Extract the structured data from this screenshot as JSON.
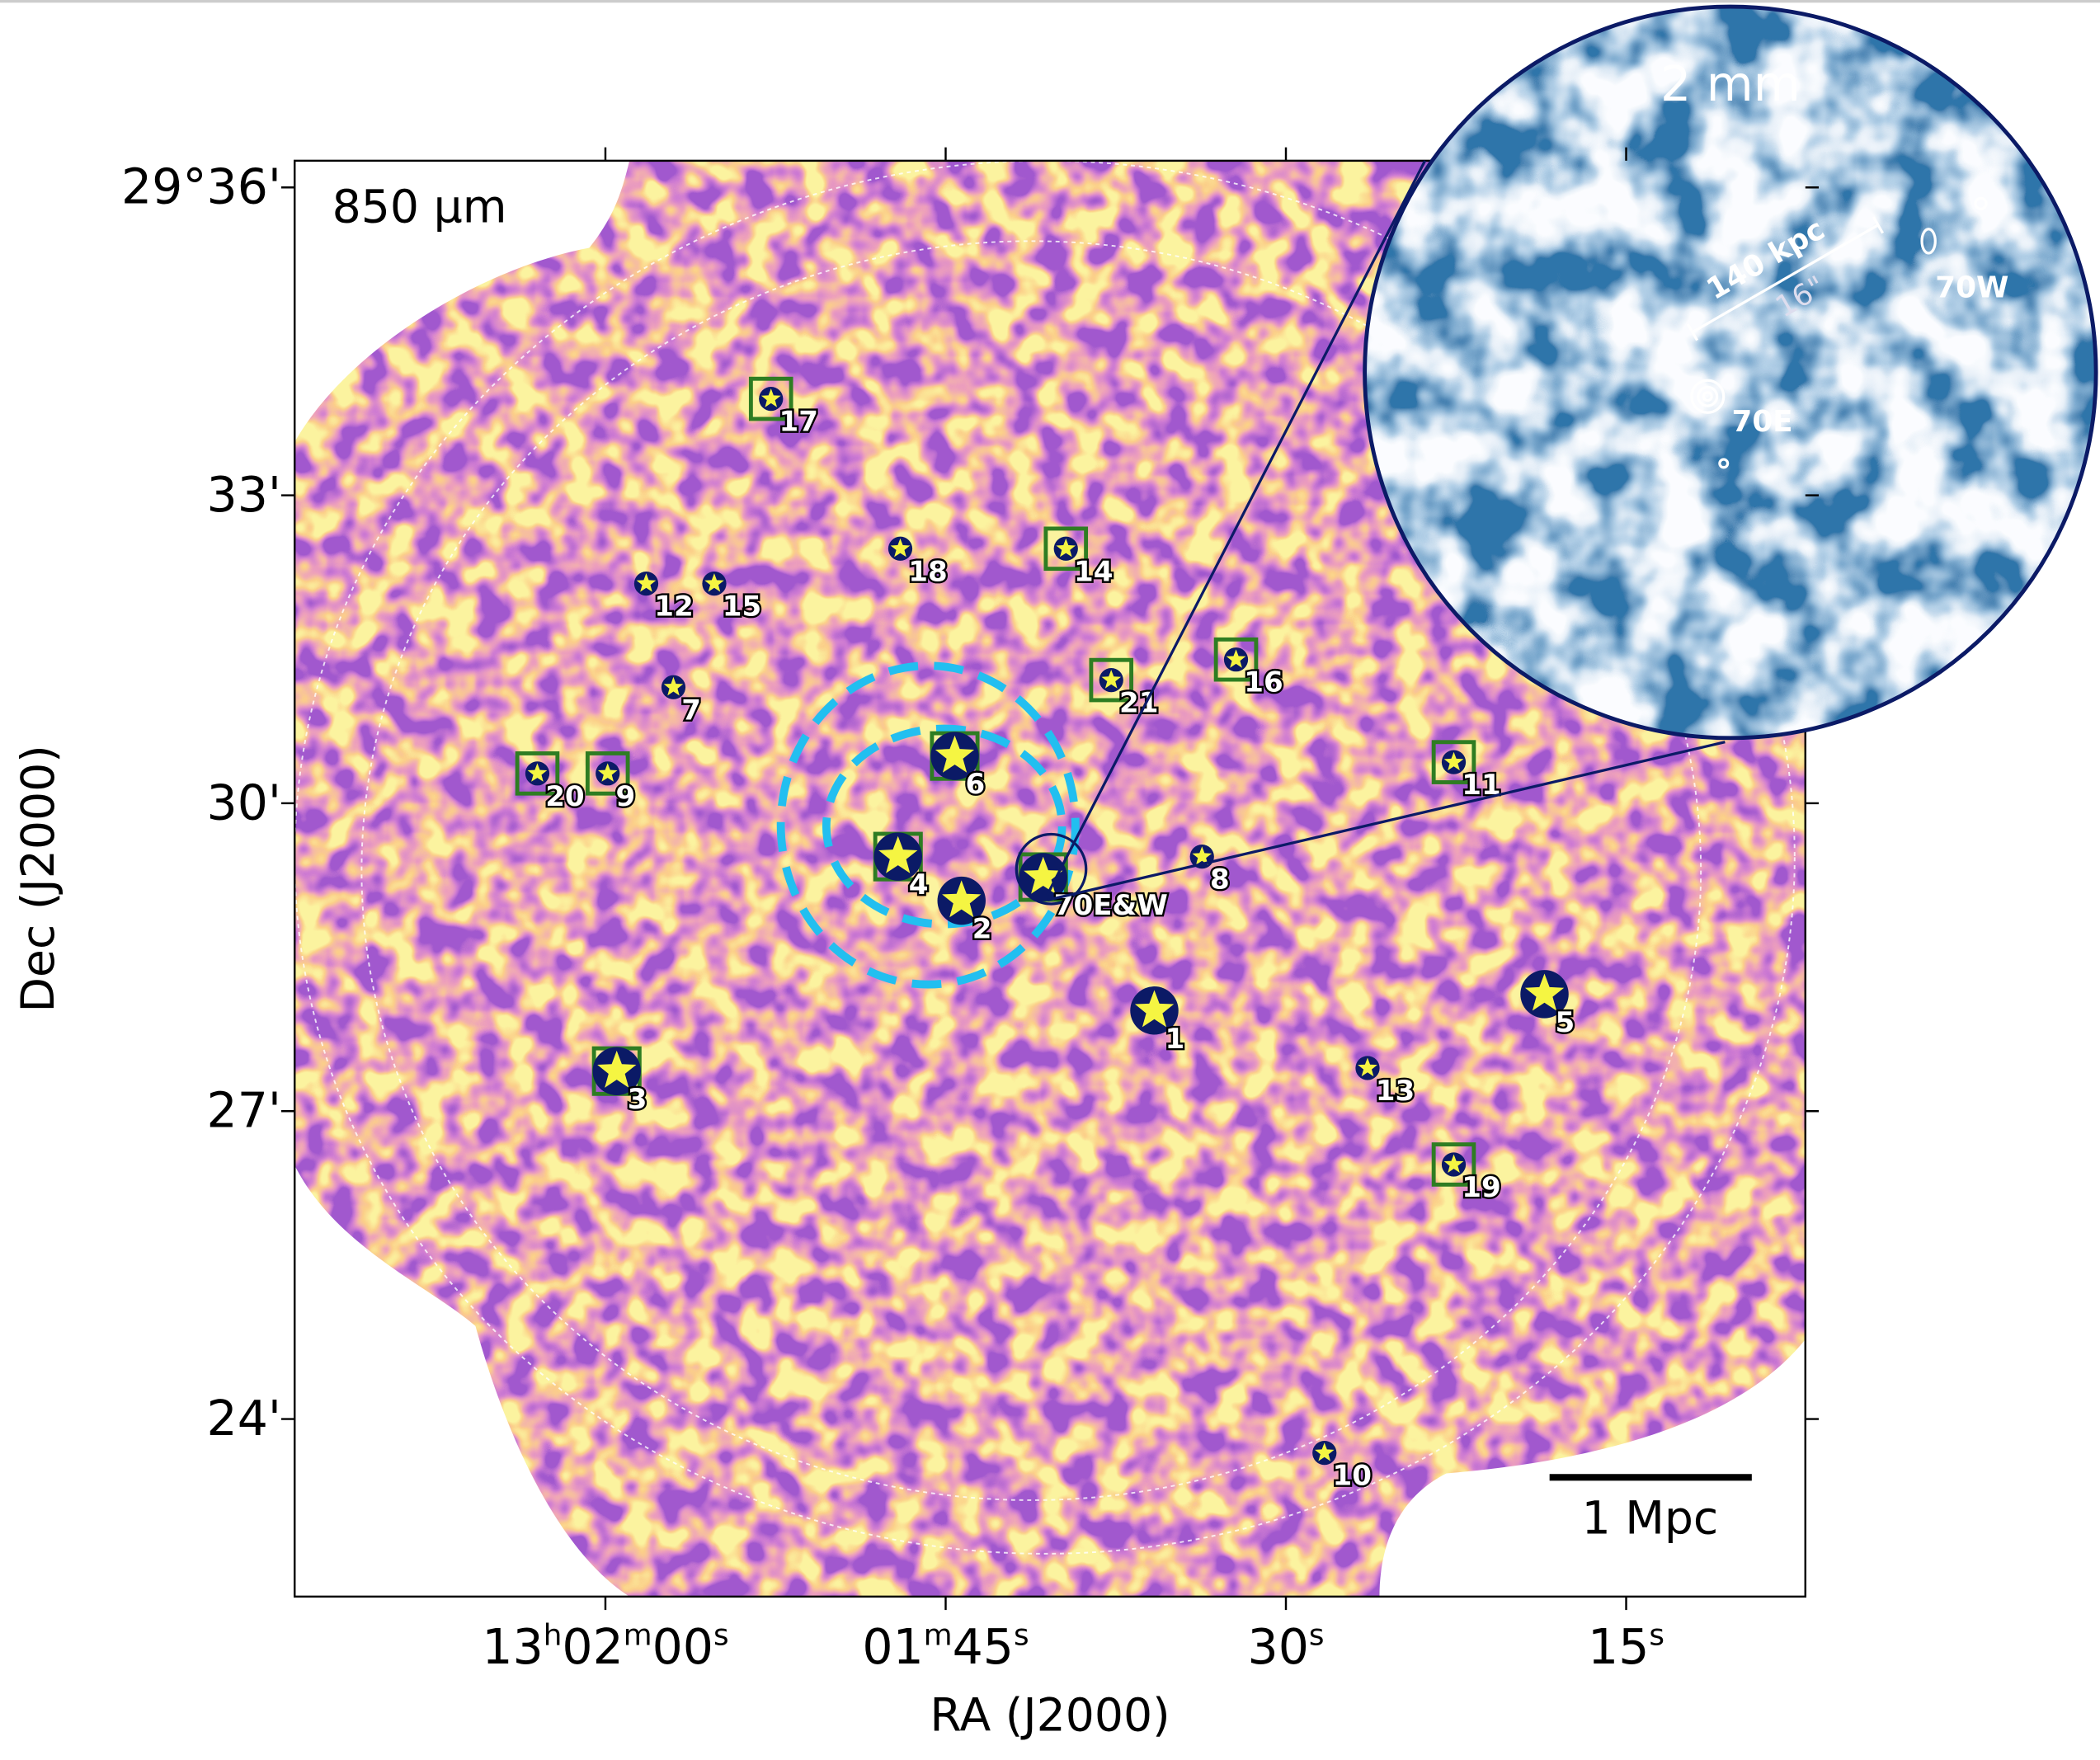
{
  "chart_data": {
    "type": "scatter",
    "title": "850 µm",
    "x_label": "RA (J2000)",
    "y_label": "Dec (J2000)",
    "xlim": [
      133.7,
      67.1
    ],
    "ylim": [
      22.27,
      36.26
    ],
    "xticks": [
      {
        "value": 120,
        "label": "13h02m00s"
      },
      {
        "value": 105,
        "label": "01m45s"
      },
      {
        "value": 90,
        "label": "30s"
      },
      {
        "value": 75,
        "label": "15s"
      }
    ],
    "yticks": [
      {
        "value": 36,
        "label": "29°36'"
      },
      {
        "value": 33,
        "label": "33'"
      },
      {
        "value": 30,
        "label": "30'"
      },
      {
        "value": 27,
        "label": "27'"
      },
      {
        "value": 24,
        "label": "24'"
      }
    ],
    "labels": [
      "1",
      "2",
      "3",
      "4",
      "5",
      "6",
      "7",
      "8",
      "9",
      "10",
      "11",
      "12",
      "13",
      "14",
      "15",
      "16",
      "17",
      "18",
      "19",
      "20",
      "21",
      "70E&W"
    ],
    "x": [
      95.8,
      104.3,
      119.5,
      107.1,
      78.6,
      104.6,
      117.0,
      93.7,
      119.9,
      88.3,
      82.6,
      118.2,
      86.4,
      99.7,
      115.2,
      92.2,
      112.7,
      107.0,
      82.6,
      123.0,
      97.7,
      100.7
    ],
    "values": [
      27.98,
      29.05,
      27.39,
      29.48,
      28.14,
      30.46,
      31.13,
      29.48,
      30.29,
      23.67,
      30.4,
      32.14,
      27.42,
      32.48,
      32.14,
      31.4,
      33.94,
      32.48,
      26.48,
      30.29,
      31.2,
      29.28
    ],
    "marker_size": [
      "large",
      "large",
      "large",
      "large",
      "large",
      "large",
      "small",
      "small",
      "small",
      "small",
      "small",
      "small",
      "small",
      "small",
      "small",
      "small",
      "small",
      "small",
      "small",
      "small",
      "small",
      "large"
    ],
    "boxed": [
      false,
      false,
      true,
      true,
      false,
      true,
      false,
      false,
      true,
      false,
      true,
      false,
      false,
      true,
      false,
      true,
      true,
      false,
      true,
      true,
      true,
      true
    ],
    "marker_color": "#f5f542",
    "box_color": "#2e7d22",
    "scale_bar": "1 Mpc",
    "inset": {
      "title": "2 mm",
      "scale": "140 kpc",
      "angle": "16\"",
      "labels": [
        "70E",
        "70W"
      ]
    }
  }
}
